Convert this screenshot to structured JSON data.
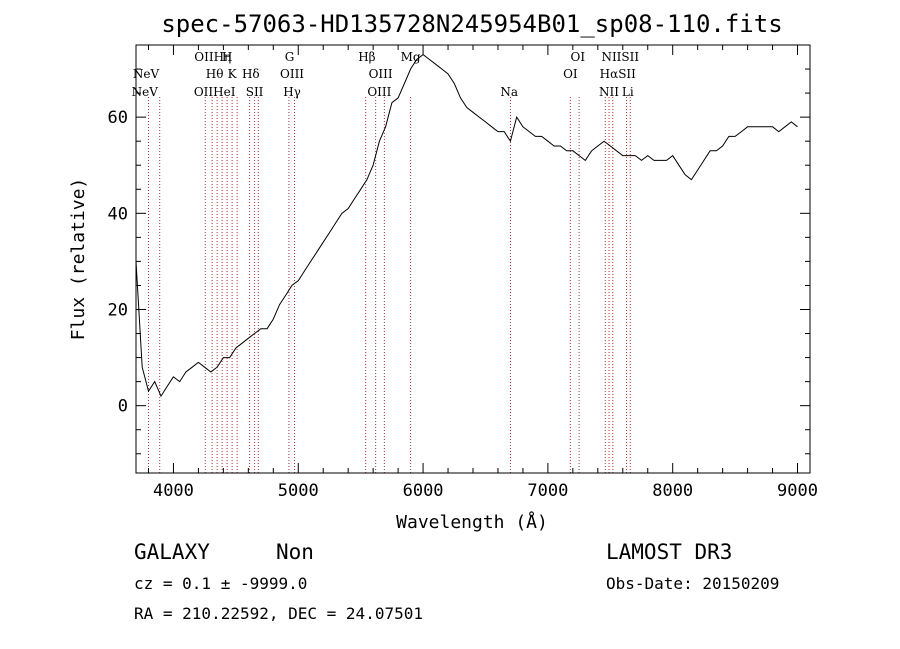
{
  "chart_data": {
    "type": "line",
    "title": "spec-57063-HD135728N245954B01_sp08-110.fits",
    "xlabel": "Wavelength (Å)",
    "ylabel": "Flux (relative)",
    "xlim": [
      3700,
      9100
    ],
    "ylim": [
      -14,
      75
    ],
    "xticks": [
      4000,
      5000,
      6000,
      7000,
      8000,
      9000
    ],
    "yticks": [
      0,
      20,
      40,
      60
    ],
    "grid": false,
    "line_color": "#000000",
    "marker_color": "#b03030",
    "series": [
      {
        "x": [
          3700,
          3750,
          3800,
          3850,
          3900,
          3950,
          4000,
          4050,
          4100,
          4150,
          4200,
          4250,
          4300,
          4350,
          4400,
          4450,
          4500,
          4550,
          4600,
          4650,
          4700,
          4750,
          4800,
          4850,
          4900,
          4950,
          5000,
          5050,
          5100,
          5150,
          5200,
          5250,
          5300,
          5350,
          5400,
          5450,
          5500,
          5550,
          5600,
          5650,
          5700,
          5750,
          5800,
          5850,
          5900,
          5950,
          6000,
          6050,
          6100,
          6150,
          6200,
          6250,
          6300,
          6350,
          6400,
          6450,
          6500,
          6550,
          6600,
          6650,
          6700,
          6750,
          6800,
          6850,
          6900,
          6950,
          7000,
          7050,
          7100,
          7150,
          7200,
          7250,
          7300,
          7350,
          7400,
          7450,
          7500,
          7550,
          7600,
          7650,
          7700,
          7750,
          7800,
          7850,
          7900,
          7950,
          8000,
          8050,
          8100,
          8150,
          8200,
          8250,
          8300,
          8350,
          8400,
          8450,
          8500,
          8550,
          8600,
          8650,
          8700,
          8750,
          8800,
          8850,
          8900,
          8950,
          9000
        ],
        "values": [
          30,
          8,
          3,
          5,
          2,
          4,
          6,
          5,
          7,
          8,
          9,
          8,
          7,
          8,
          10,
          10,
          12,
          13,
          14,
          15,
          16,
          16,
          18,
          21,
          23,
          25,
          26,
          28,
          30,
          32,
          34,
          36,
          38,
          40,
          41,
          43,
          45,
          47,
          50,
          55,
          58,
          63,
          64,
          67,
          70,
          72,
          73,
          72,
          71,
          70,
          69,
          67,
          64,
          62,
          61,
          60,
          59,
          58,
          57,
          57,
          55,
          60,
          58,
          57,
          56,
          56,
          55,
          54,
          54,
          53,
          53,
          52,
          51,
          53,
          54,
          55,
          54,
          53,
          52,
          52,
          52,
          51,
          52,
          51,
          51,
          51,
          52,
          50,
          48,
          47,
          49,
          51,
          53,
          53,
          54,
          56,
          56,
          57,
          58,
          58,
          58,
          58,
          58,
          57,
          58,
          59,
          58
        ]
      }
    ],
    "line_markers": [
      {
        "name": "NeV",
        "wavelength": 3800
      },
      {
        "name": "NeV",
        "wavelength": 3890
      },
      {
        "name": "OII",
        "wavelength": 4255
      },
      {
        "name": "Hη",
        "wavelength": 4310
      },
      {
        "name": "Hθ",
        "wavelength": 4350
      },
      {
        "name": "HeI",
        "wavelength": 4390
      },
      {
        "name": "H",
        "wavelength": 4430
      },
      {
        "name": "K",
        "wavelength": 4470
      },
      {
        "name": "SII",
        "wavelength": 4510
      },
      {
        "name": "Hδ",
        "wavelength": 4610
      },
      {
        "name": "G",
        "wavelength": 4650
      },
      {
        "name": "SII",
        "wavelength": 4680
      },
      {
        "name": "OIII",
        "wavelength": 4925
      },
      {
        "name": "Hγ",
        "wavelength": 4970
      },
      {
        "name": "Hβ",
        "wavelength": 5540
      },
      {
        "name": "OIII",
        "wavelength": 5620
      },
      {
        "name": "OIII",
        "wavelength": 5690
      },
      {
        "name": "Mg",
        "wavelength": 5900
      },
      {
        "name": "Na",
        "wavelength": 6700
      },
      {
        "name": "OI",
        "wavelength": 7180
      },
      {
        "name": "OI",
        "wavelength": 7250
      },
      {
        "name": "NII",
        "wavelength": 7460
      },
      {
        "name": "Hα",
        "wavelength": 7490
      },
      {
        "name": "NII",
        "wavelength": 7520
      },
      {
        "name": "SII",
        "wavelength": 7630
      },
      {
        "name": "SII",
        "wavelength": 7660
      }
    ],
    "marker_labels": [
      {
        "text": "NeV",
        "wavelength": 3780,
        "row": 1
      },
      {
        "text": "NeV",
        "wavelength": 3770,
        "row": 2
      },
      {
        "text": "OIIHη",
        "wavelength": 4315,
        "row": 0
      },
      {
        "text": "H",
        "wavelength": 4430,
        "row": 0
      },
      {
        "text": "Hθ",
        "wavelength": 4330,
        "row": 1
      },
      {
        "text": "K",
        "wavelength": 4470,
        "row": 1
      },
      {
        "text": "Hδ",
        "wavelength": 4620,
        "row": 1
      },
      {
        "text": "OIIHeI",
        "wavelength": 4330,
        "row": 2
      },
      {
        "text": "SII",
        "wavelength": 4650,
        "row": 2
      },
      {
        "text": "G",
        "wavelength": 4930,
        "row": 0
      },
      {
        "text": "OIII",
        "wavelength": 4950,
        "row": 1
      },
      {
        "text": "Hγ",
        "wavelength": 4950,
        "row": 2
      },
      {
        "text": "Hβ",
        "wavelength": 5550,
        "row": 0
      },
      {
        "text": "OIII",
        "wavelength": 5660,
        "row": 1
      },
      {
        "text": "OIII",
        "wavelength": 5650,
        "row": 2
      },
      {
        "text": "Mg",
        "wavelength": 5900,
        "row": 0
      },
      {
        "text": "Na",
        "wavelength": 6690,
        "row": 2
      },
      {
        "text": "OI",
        "wavelength": 7240,
        "row": 0
      },
      {
        "text": "OI",
        "wavelength": 7180,
        "row": 1
      },
      {
        "text": "NIISII",
        "wavelength": 7580,
        "row": 0
      },
      {
        "text": "HαSII",
        "wavelength": 7560,
        "row": 1
      },
      {
        "text": "NII",
        "wavelength": 7490,
        "row": 2
      },
      {
        "text": "Li",
        "wavelength": 7640,
        "row": 2
      }
    ]
  },
  "info": {
    "class_label": "GALAXY",
    "subclass_label": "Non",
    "survey": "LAMOST DR3",
    "cz": "cz = 0.1 ± -9999.0",
    "obs_date": "Obs-Date: 20150209",
    "coords": "RA = 210.22592, DEC =  24.07501"
  }
}
